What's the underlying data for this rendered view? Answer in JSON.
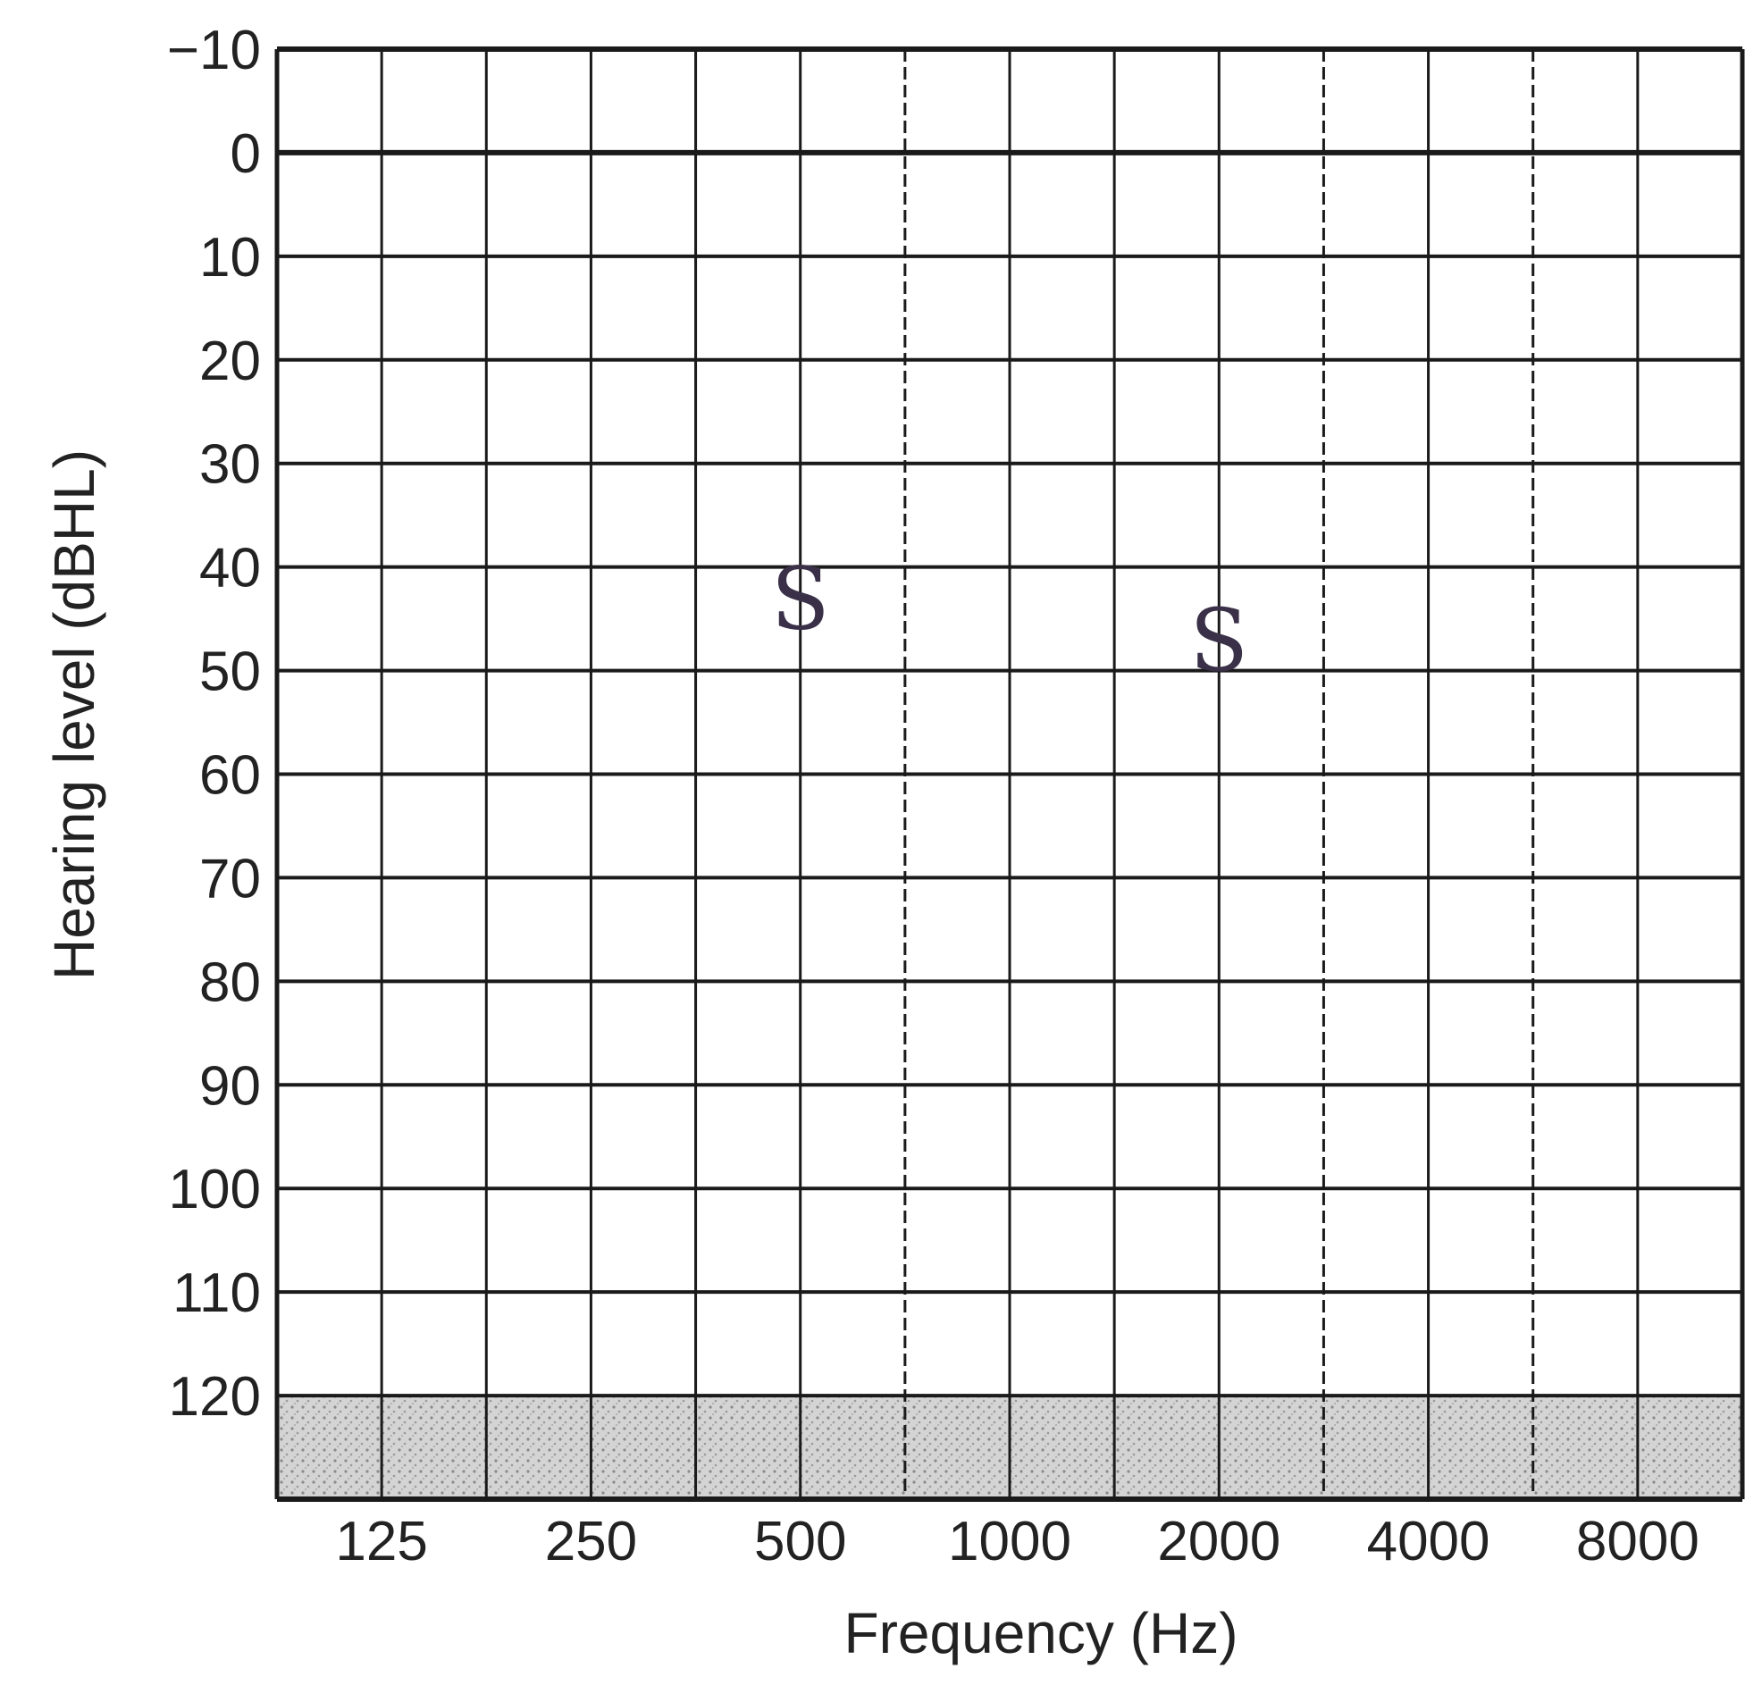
{
  "chart_data": {
    "type": "scatter",
    "title": "",
    "xlabel": "Frequency (Hz)",
    "ylabel": "Hearing level (dBHL)",
    "x_ticks": [
      "125",
      "250",
      "500",
      "1000",
      "2000",
      "4000",
      "8000"
    ],
    "y_ticks": [
      "−10",
      "0",
      "10",
      "20",
      "30",
      "40",
      "50",
      "60",
      "70",
      "80",
      "90",
      "100",
      "110",
      "120"
    ],
    "ylim": [
      -10,
      130
    ],
    "y_inverted": true,
    "x_scale": "log2 (octave)",
    "grid": true,
    "shaded_band": {
      "from": 120,
      "to": 130
    },
    "series": [
      {
        "marker": "S",
        "points": [
          {
            "x": 500,
            "y": 43
          },
          {
            "x": 2000,
            "y": 47
          }
        ]
      }
    ]
  },
  "colors": {
    "grid": "#1a1a1a",
    "text": "#222222",
    "marker": "#3a3148",
    "shade": "#c8c8c8"
  }
}
